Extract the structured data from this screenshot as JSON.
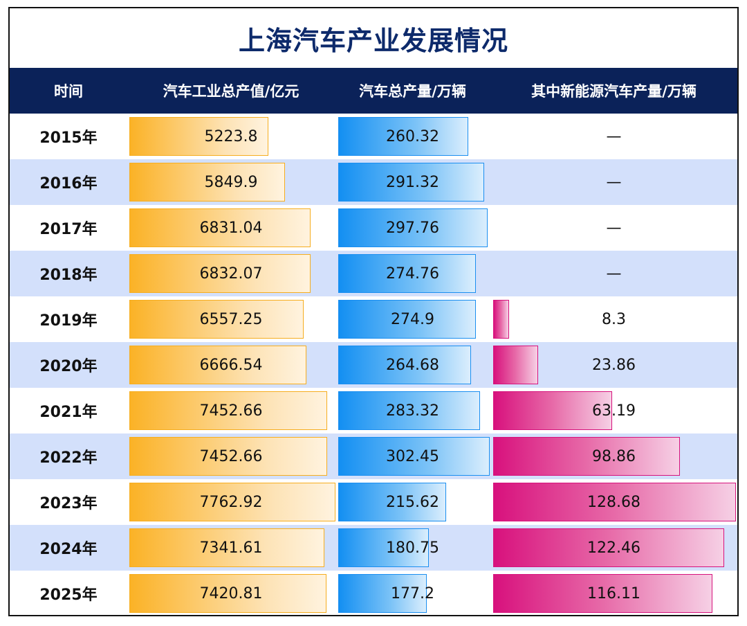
{
  "title": "上海汽车产业发展情况",
  "headers": [
    "时间",
    "汽车工业总产值/亿元",
    "汽车总产量/万辆",
    "其中新能源汽车产量/万辆"
  ],
  "colors": {
    "header_bg": "#0b2259",
    "title_text": "#0d2a6b",
    "row_alt": "#d3e0fb",
    "output_value_bar": "#fbb226",
    "production_bar": "#138ff2",
    "nev_bar": "#d8117d"
  },
  "chart_data": {
    "type": "table",
    "title": "上海汽车产业发展情况",
    "columns": [
      "时间",
      "汽车工业总产值/亿元",
      "汽车总产量/万辆",
      "其中新能源汽车产量/万辆"
    ],
    "categories": [
      "2015年",
      "2016年",
      "2017年",
      "2018年",
      "2019年",
      "2020年",
      "2021年",
      "2022年",
      "2023年",
      "2024年",
      "2025年"
    ],
    "series": [
      {
        "name": "汽车工业总产值/亿元",
        "values": [
          5223.8,
          5849.9,
          6831.04,
          6832.07,
          6557.25,
          6666.54,
          7452.66,
          7452.66,
          7762.92,
          7341.61,
          7420.81
        ],
        "labels": [
          "5223.8",
          "5849.9",
          "6831.04",
          "6832.07",
          "6557.25",
          "6666.54",
          "7452.66",
          "7452.66",
          "7762.92",
          "7341.61",
          "7420.81"
        ]
      },
      {
        "name": "汽车总产量/万辆",
        "values": [
          260.32,
          291.32,
          297.76,
          274.76,
          274.9,
          264.68,
          283.32,
          302.45,
          215.62,
          180.75,
          177.2
        ],
        "labels": [
          "260.32",
          "291.32",
          "297.76",
          "274.76",
          "274.9",
          "264.68",
          "283.32",
          "302.45",
          "215.62",
          "180.75",
          "177.2"
        ]
      },
      {
        "name": "其中新能源汽车产量/万辆",
        "values": [
          null,
          null,
          null,
          null,
          8.3,
          23.86,
          63.19,
          98.86,
          128.68,
          122.46,
          116.11
        ],
        "labels": [
          "—",
          "—",
          "—",
          "—",
          "8.3",
          "23.86",
          "63.19",
          "98.86",
          "128.68",
          "122.46",
          "116.11"
        ]
      }
    ]
  }
}
